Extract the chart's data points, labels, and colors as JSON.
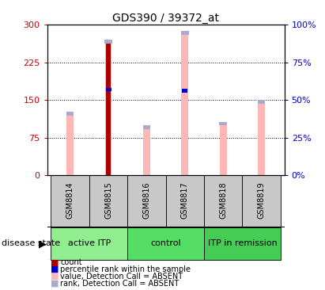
{
  "title": "GDS390 / 39372_at",
  "samples": [
    "GSM8814",
    "GSM8815",
    "GSM8816",
    "GSM8817",
    "GSM8818",
    "GSM8819"
  ],
  "pink_bar_values": [
    127,
    270,
    100,
    287,
    107,
    150
  ],
  "blue_rank_values": [
    47,
    57,
    38,
    56,
    42,
    50
  ],
  "red_count_value": 270,
  "red_count_index": 1,
  "blue_dot_indices": [
    1,
    3
  ],
  "blue_dot_values": [
    57,
    56
  ],
  "left_ylim": [
    0,
    300
  ],
  "right_ylim": [
    0,
    100
  ],
  "left_yticks": [
    0,
    75,
    150,
    225,
    300
  ],
  "right_yticks": [
    0,
    25,
    50,
    75,
    100
  ],
  "left_yticklabels": [
    "0",
    "75",
    "150",
    "225",
    "300"
  ],
  "right_yticklabels": [
    "0%",
    "25%",
    "50%",
    "75%",
    "100%"
  ],
  "left_tick_color": "#CC0000",
  "right_tick_color": "#0000CC",
  "pink_color": "#FFB6B6",
  "blue_rank_color": "#AAAACC",
  "red_color": "#AA0000",
  "blue_dot_color": "#0000CC",
  "group_defs": [
    {
      "label": "active ITP",
      "start": 0,
      "end": 1,
      "color": "#90EE90"
    },
    {
      "label": "control",
      "start": 2,
      "end": 3,
      "color": "#55DD66"
    },
    {
      "label": "ITP in remission",
      "start": 4,
      "end": 5,
      "color": "#44CC55"
    }
  ],
  "legend_items": [
    {
      "color": "#AA0000",
      "label": "count"
    },
    {
      "color": "#0000CC",
      "label": "percentile rank within the sample"
    },
    {
      "color": "#FFB6B6",
      "label": "value, Detection Call = ABSENT"
    },
    {
      "color": "#AAAACC",
      "label": "rank, Detection Call = ABSENT"
    }
  ],
  "disease_state_label": "disease state"
}
